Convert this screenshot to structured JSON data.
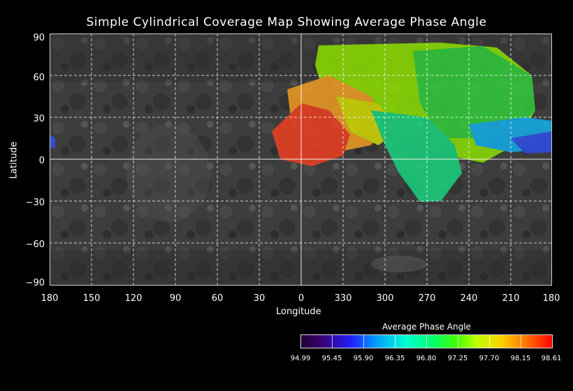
{
  "title": "Simple Cylindrical Coverage Map Showing Average Phase Angle",
  "axes": {
    "y_label": "Latitude",
    "x_label": "Longitude",
    "y_ticks": [
      "90",
      "60",
      "30",
      "0",
      "−30",
      "−60",
      "−90"
    ],
    "x_ticks": [
      "180",
      "150",
      "120",
      "90",
      "60",
      "30",
      "0",
      "330",
      "300",
      "270",
      "240",
      "210",
      "180"
    ]
  },
  "colorbar": {
    "title": "Average Phase Angle",
    "ticks": [
      "94.99",
      "95.45",
      "95.90",
      "96.35",
      "96.80",
      "97.25",
      "97.70",
      "98.15",
      "98.61"
    ],
    "min": 94.99,
    "max": 98.61
  },
  "colors": {
    "background": "#000000",
    "gridline": "#ffffff",
    "basemap": "#3b3b3b"
  }
}
